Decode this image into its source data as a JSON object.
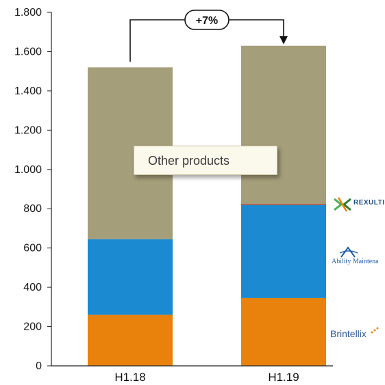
{
  "chart_data": {
    "type": "bar",
    "stacked": true,
    "categories": [
      "H1.18",
      "H1.19"
    ],
    "series": [
      {
        "name": "Brintellix",
        "color": "#e8820c",
        "values": [
          260,
          345
        ]
      },
      {
        "name": "Abilify Maintena",
        "color": "#1b8ad0",
        "values": [
          385,
          475
        ]
      },
      {
        "name": "Rexulti",
        "color": "#e0521e",
        "values": [
          0,
          5
        ]
      },
      {
        "name": "Other products",
        "color": "#a59e7a",
        "values": [
          875,
          805
        ]
      }
    ],
    "totals": [
      1520,
      1630
    ],
    "ylim": [
      0,
      1800
    ],
    "yticks": [
      0,
      200,
      400,
      600,
      800,
      1000,
      1200,
      1400,
      1600,
      1800
    ],
    "ytick_labels": [
      "0",
      "200",
      "400",
      "600",
      "800",
      "1.000",
      "1.200",
      "1.400",
      "1.600",
      "1.800"
    ],
    "growth_label": "+7%",
    "callout_label": "Other products",
    "grid": false
  },
  "logos": {
    "rexulti": "REXULTI",
    "ability": "Ability Maintena",
    "brintellix": "Brintellix"
  }
}
